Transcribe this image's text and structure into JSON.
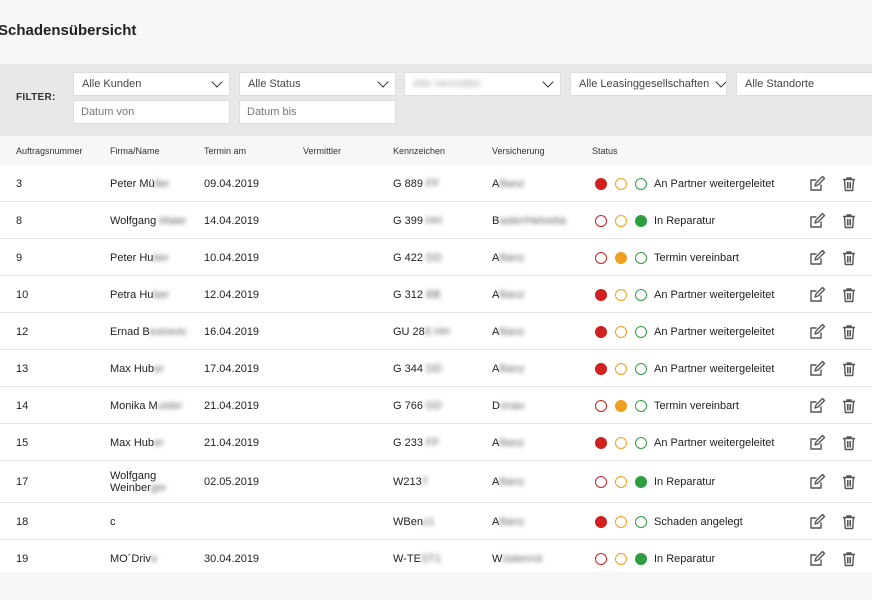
{
  "page": {
    "title": "Schadensübersicht"
  },
  "filters": {
    "label": "FILTER:",
    "kunden": "Alle Kunden",
    "status": "Alle Status",
    "vermittler": "Alle Vermittler",
    "leasing": "Alle Leasinggesellschaften",
    "standorte": "Alle Standorte",
    "datum_von_placeholder": "Datum von",
    "datum_bis_placeholder": "Datum bis"
  },
  "table": {
    "headers": {
      "auftrag": "Auftragsnummer",
      "firma": "Firma/Name",
      "termin": "Termin am",
      "vermittler": "Vermittler",
      "kennzeichen": "Kennzeichen",
      "versicherung": "Versicherung",
      "status": "Status"
    },
    "rows": [
      {
        "nr": "3",
        "name1": "Peter Mü",
        "name1b": "ller",
        "name2": "",
        "name2b": "",
        "termin": "09.04.2019",
        "kz": "G 889",
        "kzb": " FF",
        "vers_a": "A",
        "vers_b": "llianz",
        "dots": [
          1,
          0,
          0
        ],
        "status": "An Partner weitergeleitet"
      },
      {
        "nr": "8",
        "name1": "Wolfgang",
        "name1b": " Maier",
        "name2": "",
        "name2b": "",
        "termin": "14.04.2019",
        "kz": "G 399",
        "kzb": " HH",
        "vers_a": "B",
        "vers_b": "asler/Helvetia",
        "dots": [
          0,
          0,
          1
        ],
        "status": "In Reparatur"
      },
      {
        "nr": "9",
        "name1": "Peter Hu",
        "name1b": "ber",
        "name2": "",
        "name2b": "",
        "termin": "10.04.2019",
        "kz": "G 422",
        "kzb": " DD",
        "vers_a": "A",
        "vers_b": "llianz",
        "dots": [
          0,
          1,
          0
        ],
        "status": "Termin vereinbart"
      },
      {
        "nr": "10",
        "name1": "Petra Hu",
        "name1b": "ber",
        "name2": "",
        "name2b": "",
        "termin": "12.04.2019",
        "kz": "G 312",
        "kzb": " BB",
        "vers_a": "A",
        "vers_b": "llianz",
        "dots": [
          1,
          0,
          0
        ],
        "status": "An Partner weitergeleitet"
      },
      {
        "nr": "12",
        "name1": "Ernad B",
        "name1b": "esirevic",
        "name2": "",
        "name2b": "",
        "termin": "16.04.2019",
        "kz": "GU 28",
        "kzb": "8 HH",
        "vers_a": "A",
        "vers_b": "llianz",
        "dots": [
          1,
          0,
          0
        ],
        "status": "An Partner weitergeleitet"
      },
      {
        "nr": "13",
        "name1": "Max Hub",
        "name1b": "er",
        "name2": "",
        "name2b": "",
        "termin": "17.04.2019",
        "kz": "G 344",
        "kzb": " DD",
        "vers_a": "A",
        "vers_b": "llianz",
        "dots": [
          1,
          0,
          0
        ],
        "status": "An Partner weitergeleitet"
      },
      {
        "nr": "14",
        "name1": "Monika M",
        "name1b": "uster",
        "name2": "",
        "name2b": "",
        "termin": "21.04.2019",
        "kz": "G 766",
        "kzb": " DD",
        "vers_a": "D",
        "vers_b": "onau",
        "dots": [
          0,
          1,
          0
        ],
        "status": "Termin vereinbart"
      },
      {
        "nr": "15",
        "name1": "Max Hub",
        "name1b": "er",
        "name2": "",
        "name2b": "",
        "termin": "21.04.2019",
        "kz": "G 233",
        "kzb": " FF",
        "vers_a": "A",
        "vers_b": "llianz",
        "dots": [
          1,
          0,
          0
        ],
        "status": "An Partner weitergeleitet"
      },
      {
        "nr": "17",
        "name1": "Wolfgang",
        "name1b": "",
        "name2": "Weinber",
        "name2b": "ger",
        "termin": "02.05.2019",
        "kz": "W213",
        "kzb": "T",
        "vers_a": "A",
        "vers_b": "llianz",
        "dots": [
          0,
          0,
          1
        ],
        "status": "In Reparatur"
      },
      {
        "nr": "18",
        "name1": "c",
        "name1b": "",
        "name2": "",
        "name2b": "",
        "termin": "",
        "kz": "WBen",
        "kzb": "z1",
        "vers_a": "A",
        "vers_b": "llianz",
        "dots": [
          1,
          0,
          0
        ],
        "status": "Schaden angelegt"
      },
      {
        "nr": "19",
        "name1": "MO´Driv",
        "name1b": "e",
        "name2": "",
        "name2b": "",
        "termin": "30.04.2019",
        "kz": "W-TE",
        "kzb": "ST1",
        "vers_a": "W",
        "vers_b": "üstenrot",
        "dots": [
          0,
          0,
          1
        ],
        "status": "In Reparatur"
      }
    ]
  },
  "icons": {
    "edit": "edit-icon",
    "delete": "trash-icon"
  },
  "colors": {
    "red": "#d0201f",
    "orange": "#f0a020",
    "green": "#2e9e3e"
  }
}
